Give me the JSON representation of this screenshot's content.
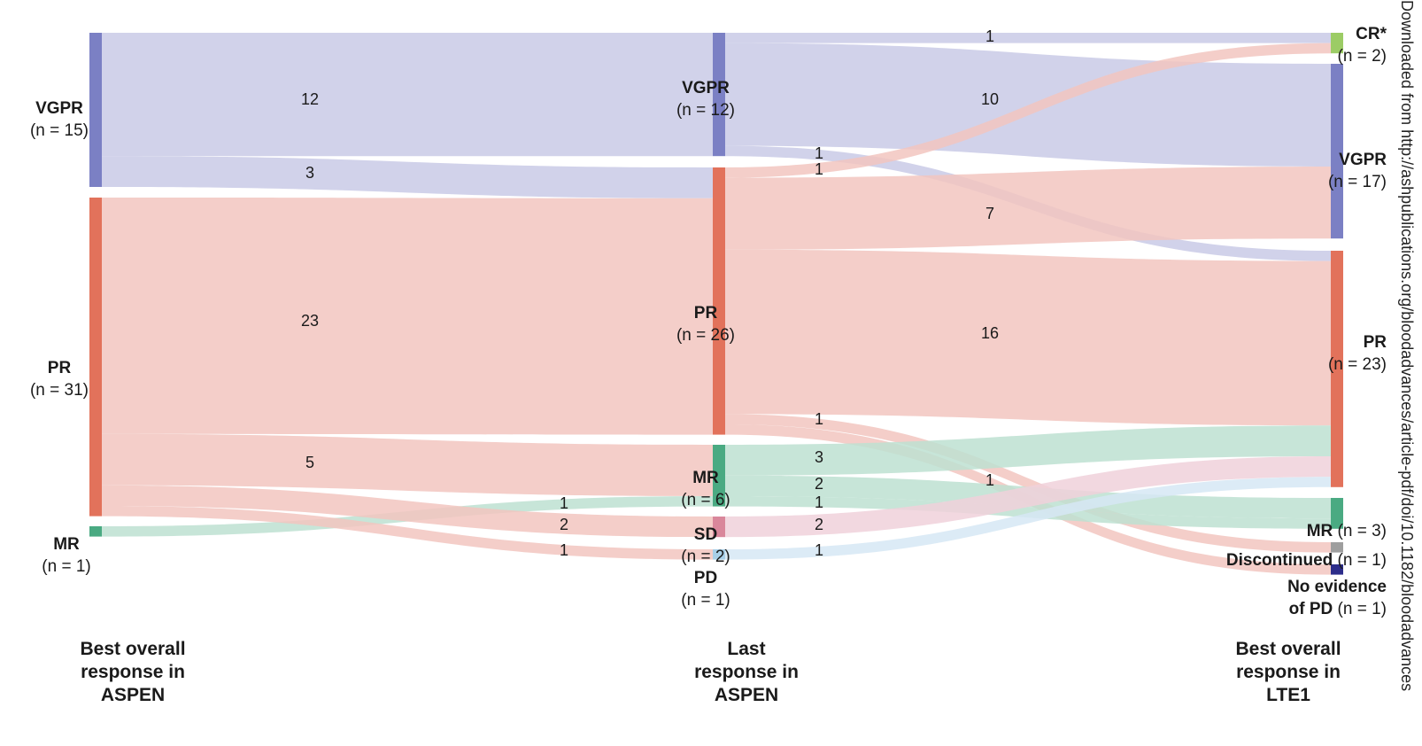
{
  "columns": {
    "left": [
      "Best overall",
      "response in",
      "ASPEN"
    ],
    "middle": [
      "Last",
      "response in",
      "ASPEN"
    ],
    "right": [
      "Best overall",
      "response in",
      "LTE1"
    ]
  },
  "nodes": {
    "aspen_best": {
      "vgpr": {
        "name": "VGPR",
        "count": "(n = 15)",
        "value": 15
      },
      "pr": {
        "name": "PR",
        "count": "(n = 31)",
        "value": 31
      },
      "mr": {
        "name": "MR",
        "count": "(n = 1)",
        "value": 1
      }
    },
    "aspen_last": {
      "vgpr": {
        "name": "VGPR",
        "count": "(n = 12)",
        "value": 12
      },
      "pr": {
        "name": "PR",
        "count": "(n = 26)",
        "value": 26
      },
      "mr": {
        "name": "MR",
        "count": "(n = 6)",
        "value": 6
      },
      "sd": {
        "name": "SD",
        "count": "(n = 2)",
        "value": 2
      },
      "pd": {
        "name": "PD",
        "count": "(n = 1)",
        "value": 1
      }
    },
    "lte1": {
      "cr": {
        "name": "CR*",
        "count": "(n = 2)",
        "value": 2
      },
      "vgpr": {
        "name": "VGPR",
        "count": "(n = 17)",
        "value": 17
      },
      "pr": {
        "name": "PR",
        "count": "(n = 23)",
        "value": 23
      },
      "mr": {
        "name": "MR",
        "count": "(n = 3)",
        "value": 3
      },
      "disc": {
        "name": "Discontinued",
        "count": "(n = 1)",
        "value": 1
      },
      "nopd": {
        "name": "No evidence",
        "name2": "of PD",
        "count": "(n = 1)",
        "value": 1
      }
    }
  },
  "flows": {
    "stage1": [
      {
        "from": "VGPR",
        "to": "VGPR",
        "value": 12,
        "label": "12"
      },
      {
        "from": "VGPR",
        "to": "PR",
        "value": 3,
        "label": "3"
      },
      {
        "from": "PR",
        "to": "PR",
        "value": 23,
        "label": "23"
      },
      {
        "from": "PR",
        "to": "MR",
        "value": 5,
        "label": "5"
      },
      {
        "from": "MR",
        "to": "MR",
        "value": 1,
        "label": "1"
      },
      {
        "from": "PR",
        "to": "SD",
        "value": 2,
        "label": "2"
      },
      {
        "from": "PR",
        "to": "PD",
        "value": 1,
        "label": "1"
      }
    ],
    "stage2": [
      {
        "from": "VGPR",
        "to": "CR*",
        "value": 1,
        "label": "1"
      },
      {
        "from": "VGPR",
        "to": "VGPR",
        "value": 10,
        "label": "10"
      },
      {
        "from": "VGPR",
        "to": "PR",
        "value": 1,
        "label": "1"
      },
      {
        "from": "PR",
        "to": "CR*",
        "value": 1,
        "label": "1"
      },
      {
        "from": "PR",
        "to": "VGPR",
        "value": 7,
        "label": "7"
      },
      {
        "from": "PR",
        "to": "PR",
        "value": 16,
        "label": "16"
      },
      {
        "from": "PR",
        "to": "Discontinued",
        "value": 1,
        "label": "1"
      },
      {
        "from": "PR",
        "to": "No evidence of PD",
        "value": 1,
        "label": "1"
      },
      {
        "from": "MR",
        "to": "PR",
        "value": 3,
        "label": "3"
      },
      {
        "from": "MR",
        "to": "MR",
        "value": 2,
        "label": "2"
      },
      {
        "from": "MR",
        "to": "MR",
        "value": 1,
        "label": "1"
      },
      {
        "from": "SD",
        "to": "PR",
        "value": 2,
        "label": "2"
      },
      {
        "from": "PD",
        "to": "PR",
        "value": 1,
        "label": "1"
      }
    ]
  },
  "colors": {
    "vgpr_node": "#7b80c4",
    "vgpr_flow": "#c9cae6",
    "pr_node": "#e2725b",
    "pr_flow": "#f2c6c0",
    "mr_node": "#4aaa82",
    "mr_flow": "#bde1d1",
    "sd_node": "#d9879b",
    "sd_flow": "#f0d1da",
    "pd_node": "#a8cfe8",
    "pd_flow": "#d6e8f4",
    "cr_node": "#9ccc65",
    "disc_node": "#9e9e9e",
    "nopd_node": "#2d2d8a"
  },
  "watermark": "Downloaded from http://ashpublications.org/bloodadvances/article-pdf/doi/10.1182/bloodadvances"
}
